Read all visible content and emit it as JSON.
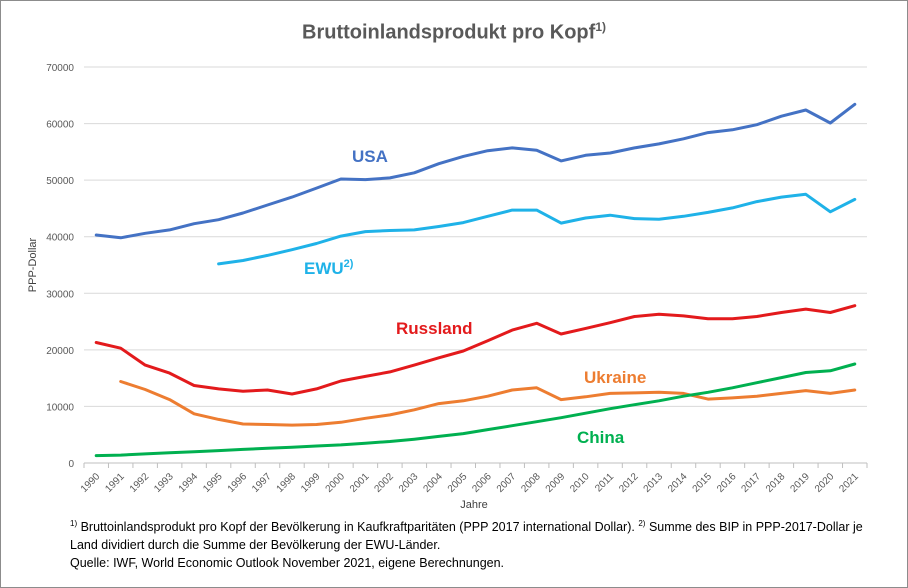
{
  "chart_data": {
    "type": "line",
    "title": "Bruttoinlandsprodukt pro Kopf",
    "title_sup": "1)",
    "xlabel": "Jahre",
    "ylabel": "PPP-Dollar",
    "ylim": [
      0,
      70000
    ],
    "yticks": [
      0,
      10000,
      20000,
      30000,
      40000,
      50000,
      60000,
      70000
    ],
    "ytick_labels": [
      "0",
      "10000",
      "20000",
      "30000",
      "40000",
      "50000",
      "60000",
      "70000"
    ],
    "x": [
      "1990",
      "1991",
      "1992",
      "1993",
      "1994",
      "1995",
      "1996",
      "1997",
      "1998",
      "1999",
      "2000",
      "2001",
      "2002",
      "2003",
      "2004",
      "2005",
      "2006",
      "2007",
      "2008",
      "2009",
      "2010",
      "2011",
      "2012",
      "2013",
      "2014",
      "2015",
      "2016",
      "2017",
      "2018",
      "2019",
      "2020",
      "2021"
    ],
    "grid": "horizontal",
    "legend": "inline labels",
    "series": [
      {
        "name": "USA",
        "name_sup": "",
        "color": "#4472c4",
        "values": [
          40300,
          39800,
          40600,
          41200,
          42300,
          43000,
          44200,
          45600,
          47000,
          48600,
          50200,
          50100,
          50400,
          51300,
          52900,
          54200,
          55200,
          55700,
          55300,
          53400,
          54400,
          54800,
          55700,
          56400,
          57300,
          58400,
          58900,
          59800,
          61300,
          62400,
          60100,
          63400
        ]
      },
      {
        "name": "EWU",
        "name_sup": "2)",
        "color": "#1fb2e8",
        "values": [
          null,
          null,
          null,
          null,
          null,
          35200,
          35800,
          36700,
          37700,
          38800,
          40100,
          40900,
          41100,
          41200,
          41800,
          42500,
          43600,
          44700,
          44700,
          42400,
          43300,
          43800,
          43200,
          43100,
          43600,
          44300,
          45100,
          46200,
          47000,
          47500,
          44400,
          46600
        ]
      },
      {
        "name": "Russland",
        "name_sup": "",
        "color": "#e31a1c",
        "values": [
          21300,
          20300,
          17300,
          15900,
          13700,
          13100,
          12700,
          12900,
          12200,
          13100,
          14500,
          15300,
          16100,
          17300,
          18600,
          19800,
          21600,
          23500,
          24700,
          22800,
          23800,
          24800,
          25900,
          26300,
          26000,
          25500,
          25500,
          25900,
          26600,
          27200,
          26600,
          27800
        ]
      },
      {
        "name": "Ukraine",
        "name_sup": "",
        "color": "#ed7d31",
        "values": [
          null,
          14400,
          13000,
          11200,
          8700,
          7700,
          6900,
          6800,
          6700,
          6800,
          7200,
          7900,
          8500,
          9400,
          10500,
          11000,
          11800,
          12900,
          13300,
          11200,
          11700,
          12300,
          12400,
          12500,
          12300,
          11300,
          11500,
          11800,
          12300,
          12800,
          12300,
          12900
        ]
      },
      {
        "name": "China",
        "name_sup": "",
        "color": "#00b050",
        "values": [
          1300,
          1400,
          1600,
          1800,
          2000,
          2200,
          2400,
          2600,
          2800,
          3000,
          3200,
          3500,
          3800,
          4200,
          4700,
          5200,
          5900,
          6600,
          7300,
          8000,
          8800,
          9600,
          10300,
          11000,
          11800,
          12500,
          13300,
          14200,
          15100,
          16000,
          16300,
          17500
        ]
      }
    ]
  },
  "footnotes": {
    "n1_marker": "1)",
    "n1_text": " Bruttoinlandsprodukt pro Kopf der Bevölkerung in Kaufkraftparitäten (PPP 2017 international Dollar). ",
    "n2_marker": "2)",
    "n2_text_a": " Summe des BIP in PPP-2017-Dollar je",
    "n2_text_b": "Land dividiert durch die Summe der Bevölkerung der EWU-Länder.",
    "source": "Quelle: IWF, World Economic Outlook November 2021, eigene Berechnungen."
  }
}
